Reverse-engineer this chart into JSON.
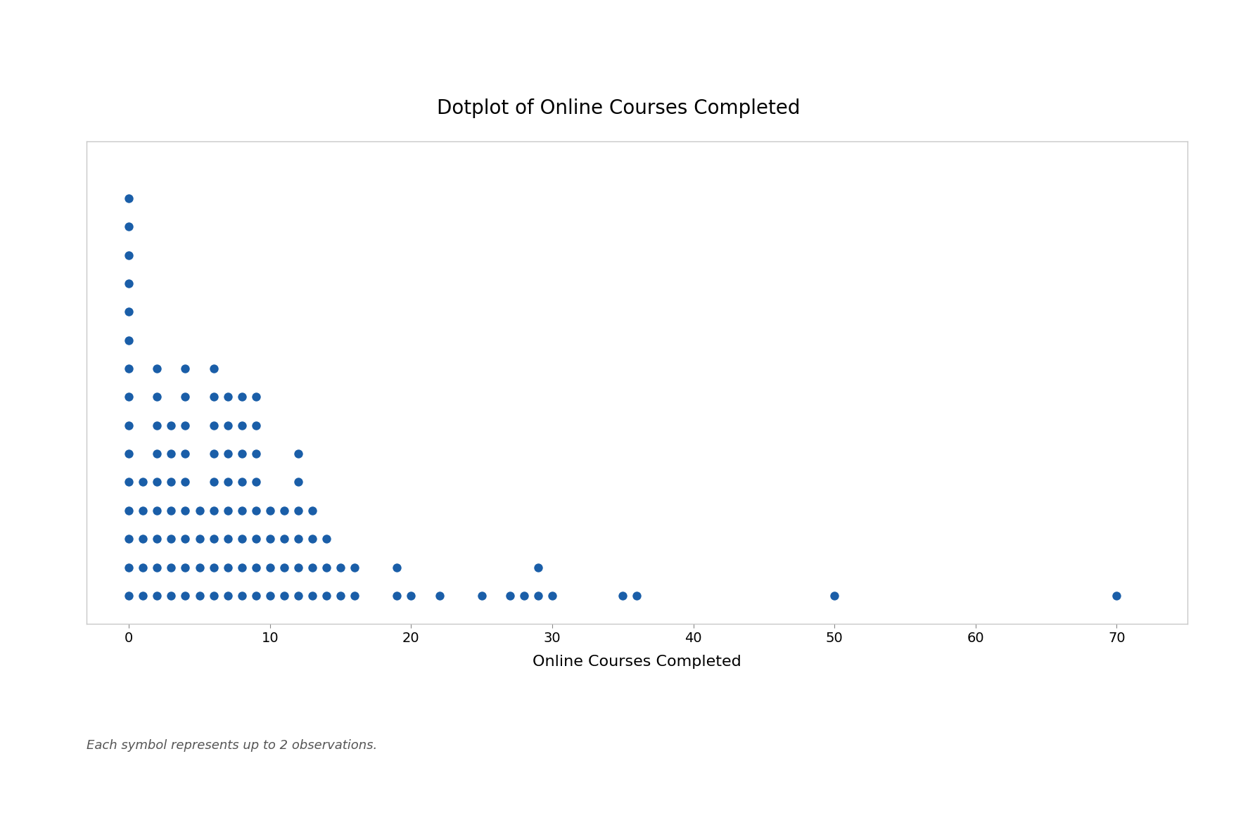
{
  "title": "Dotplot of Online Courses Completed",
  "xlabel": "Online Courses Completed",
  "dot_color": "#1A5EA8",
  "background_color": "#ffffff",
  "border_color": "#c8c8c8",
  "footnote": "Each symbol represents up to 2 observations.",
  "symbol_represents": 2,
  "counts": {
    "0": 30,
    "1": 9,
    "2": 17,
    "3": 13,
    "4": 18,
    "5": 7,
    "6": 18,
    "7": 16,
    "8": 16,
    "9": 16,
    "10": 8,
    "11": 8,
    "12": 11,
    "13": 7,
    "14": 5,
    "15": 4,
    "16": 3,
    "19": 3,
    "20": 1,
    "22": 1,
    "25": 1,
    "27": 1,
    "28": 2,
    "29": 3,
    "30": 2,
    "35": 2,
    "36": 2,
    "50": 1,
    "70": 2
  },
  "xlim": [
    -3,
    75
  ],
  "ylim": [
    0,
    17
  ],
  "xticks": [
    0,
    10,
    20,
    30,
    40,
    50,
    60,
    70
  ],
  "title_fontsize": 20,
  "xlabel_fontsize": 16,
  "tick_fontsize": 14,
  "footnote_fontsize": 13,
  "dot_size": 80
}
